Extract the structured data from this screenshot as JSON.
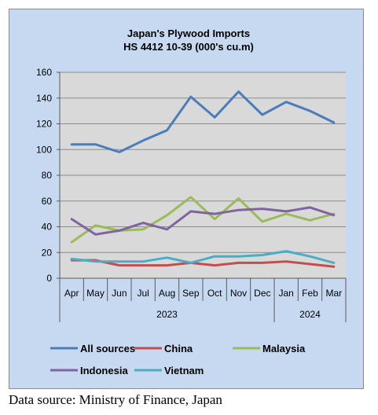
{
  "chart_data": {
    "type": "line",
    "title": "Japan's Plywood Imports",
    "subtitle": "HS 4412 10-39  (000's cu.m)",
    "categories": [
      "Apr",
      "May",
      "Jun",
      "Jul",
      "Aug",
      "Sep",
      "Oct",
      "Nov",
      "Dec",
      "Jan",
      "Feb",
      "Mar"
    ],
    "category_groups": [
      {
        "label": "2023",
        "span": 9
      },
      {
        "label": "2024",
        "span": 3
      }
    ],
    "ylim": [
      0,
      160
    ],
    "yticks": [
      "0",
      "20",
      "40",
      "60",
      "80",
      "100",
      "120",
      "140",
      "160"
    ],
    "grid": true,
    "legend_position": "bottom",
    "series": [
      {
        "name": "All sources",
        "color": "#4a7ebb",
        "values": [
          104,
          104,
          98,
          107,
          115,
          141,
          125,
          145,
          127,
          137,
          130,
          121
        ]
      },
      {
        "name": "China",
        "color": "#c0504d",
        "values": [
          14,
          14,
          10,
          10,
          10,
          12,
          10,
          12,
          12,
          13,
          11,
          9
        ]
      },
      {
        "name": "Malaysia",
        "color": "#9bbb59",
        "values": [
          28,
          41,
          37,
          38,
          49,
          63,
          46,
          62,
          44,
          50,
          45,
          50
        ]
      },
      {
        "name": "Indonesia",
        "color": "#8064a2",
        "values": [
          46,
          34,
          37,
          43,
          38,
          52,
          50,
          53,
          54,
          52,
          55,
          49
        ]
      },
      {
        "name": "Vietnam",
        "color": "#4bacc6",
        "values": [
          15,
          13,
          13,
          13,
          16,
          12,
          17,
          17,
          18,
          21,
          17,
          12
        ]
      }
    ]
  },
  "source_note": "Data source: Ministry of Finance, Japan"
}
